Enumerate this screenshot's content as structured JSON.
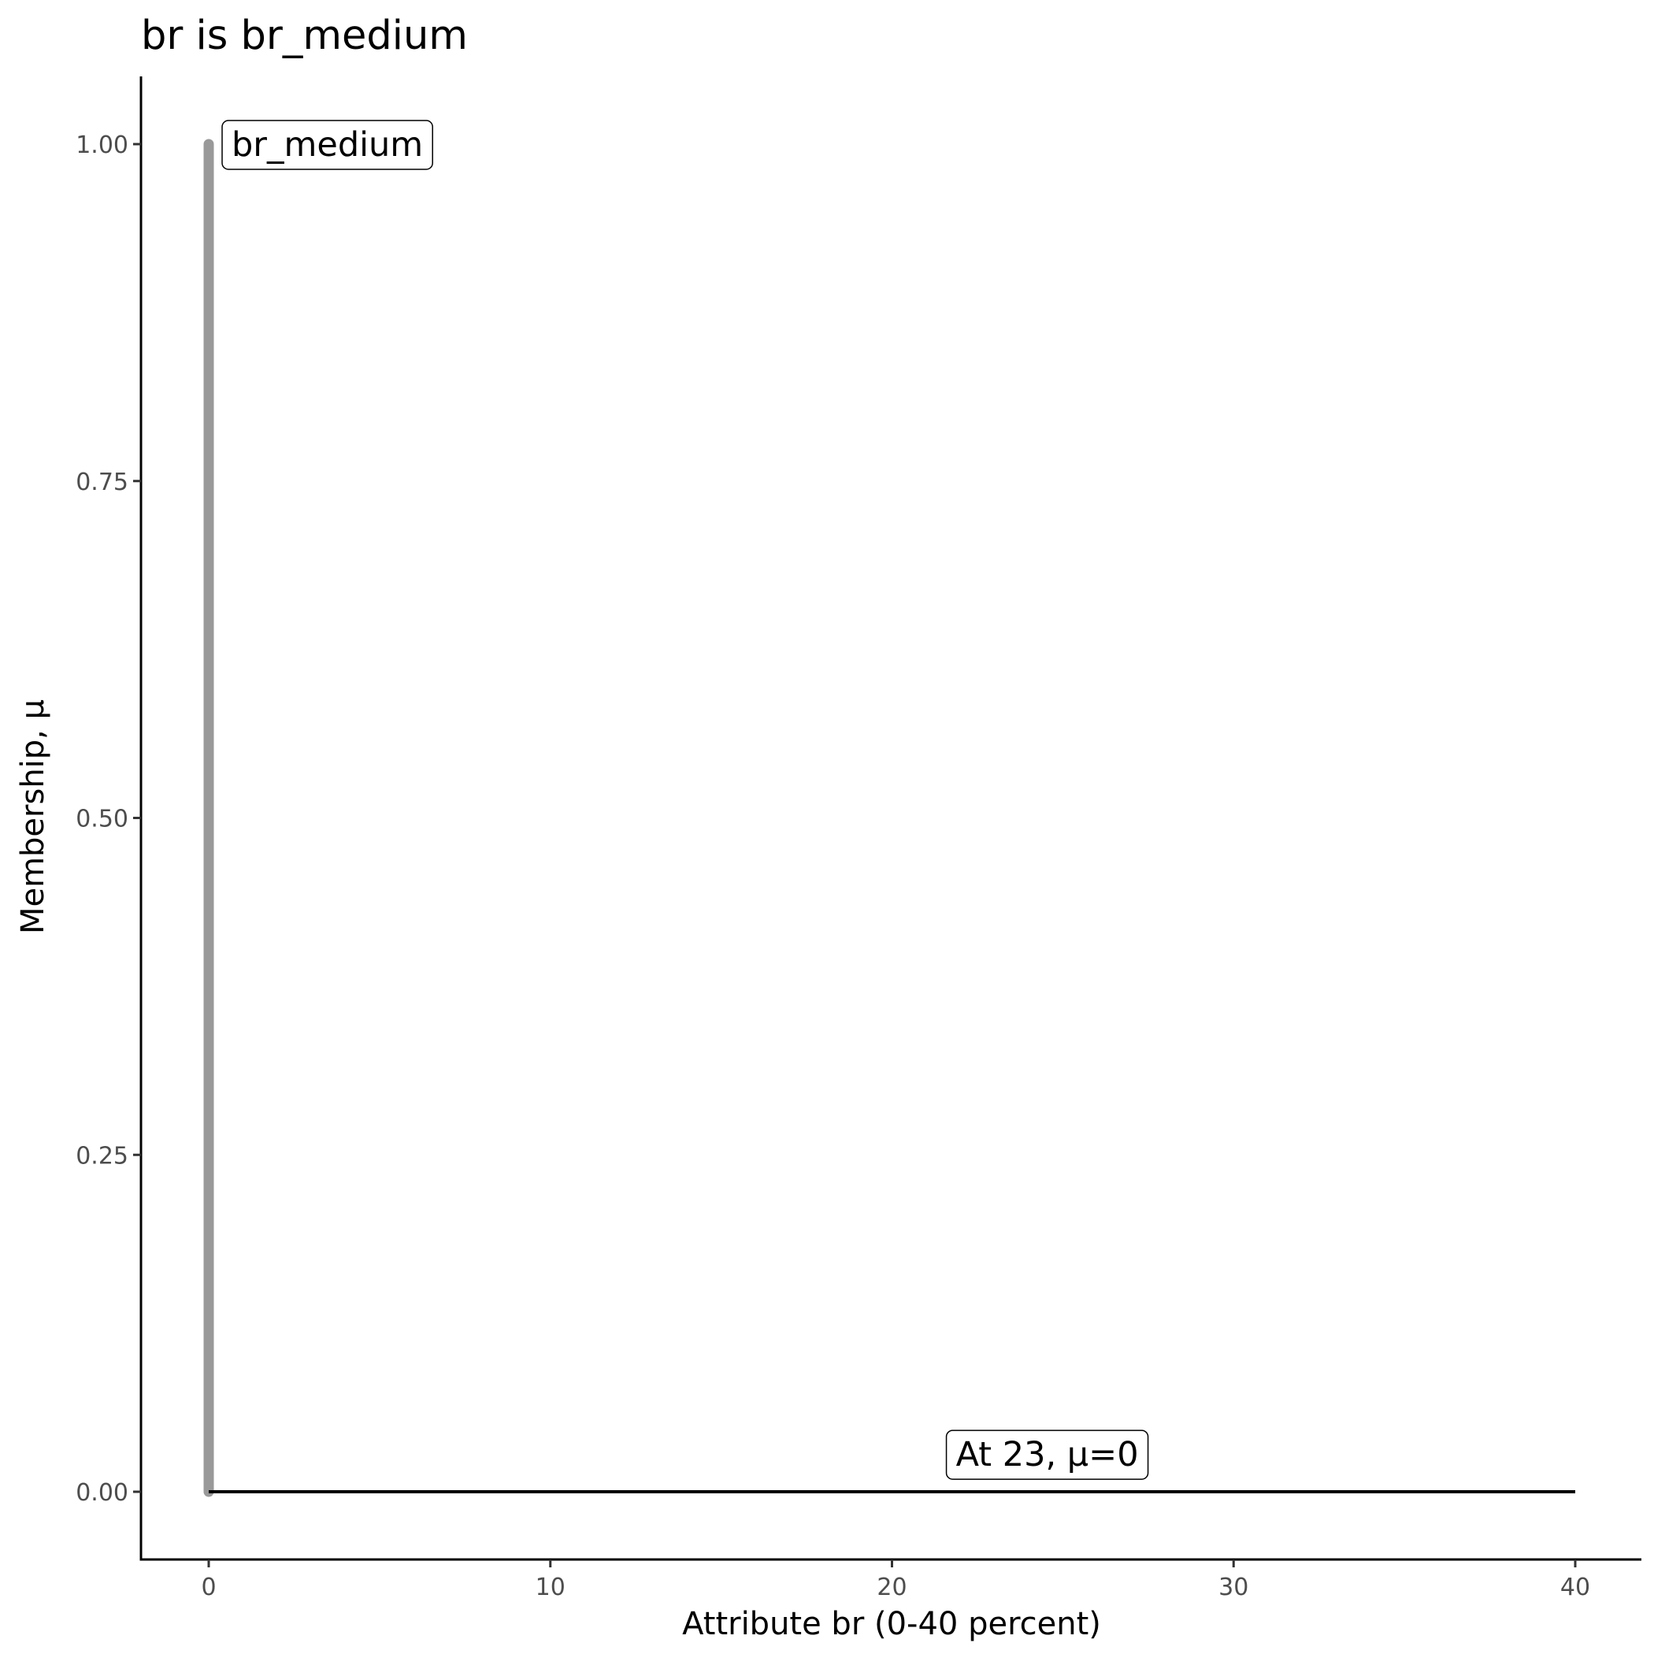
{
  "chart_data": {
    "type": "line",
    "title": "br is br_medium",
    "xlabel": "Attribute br (0-40 percent)",
    "ylabel": "Membership, μ",
    "xlim": [
      -2,
      42
    ],
    "ylim": [
      -0.05,
      1.05
    ],
    "x_ticks": [
      0,
      10,
      20,
      30,
      40
    ],
    "x_tick_labels": [
      "0",
      "10",
      "20",
      "30",
      "40"
    ],
    "y_ticks": [
      0,
      0.25,
      0.5,
      0.75,
      1
    ],
    "y_tick_labels": [
      "0.00",
      "0.25",
      "0.50",
      "0.75",
      "1.00"
    ],
    "grid": false,
    "series": [
      {
        "role": "membership-function",
        "color": "#999999",
        "x": [
          0,
          0
        ],
        "y": [
          0,
          1
        ]
      },
      {
        "role": "evaluated-value",
        "color": "#000000",
        "x": [
          0,
          40
        ],
        "y": [
          0,
          0
        ]
      }
    ],
    "annotations": [
      {
        "text": "br_medium",
        "x": 0.3,
        "y": 1.0
      },
      {
        "text": "At 23, μ=0",
        "x": 21.5,
        "y": 0.028
      }
    ]
  }
}
